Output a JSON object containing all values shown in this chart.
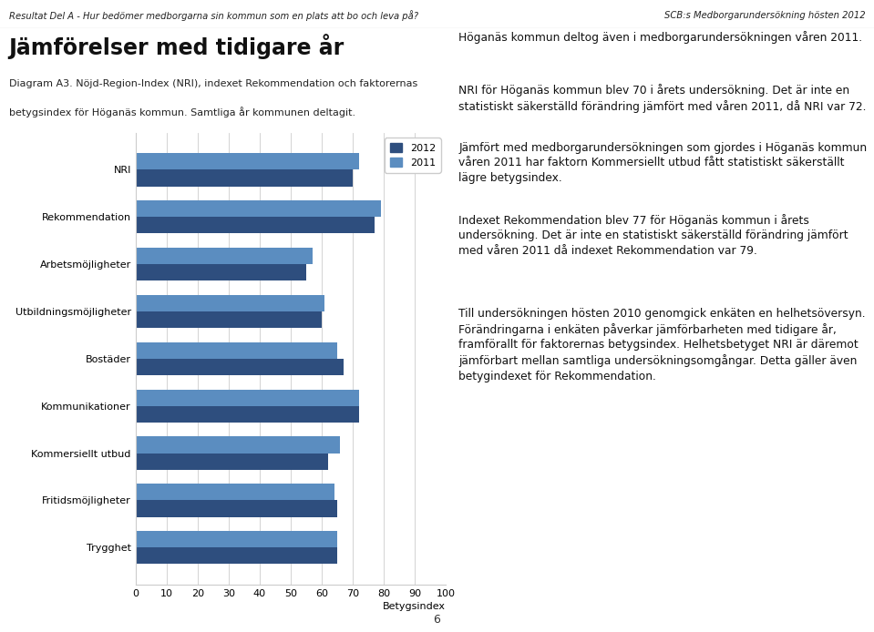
{
  "categories": [
    "NRI",
    "Rekommendation",
    "Arbetsmöjligheter",
    "Utbildningsmöjligheter",
    "Bostäder",
    "Kommunikationer",
    "Kommersiellt utbud",
    "Fritidsmöjligheter",
    "Trygghet"
  ],
  "values_2012": [
    70,
    77,
    55,
    60,
    67,
    72,
    62,
    65,
    65
  ],
  "values_2011": [
    72,
    79,
    57,
    61,
    65,
    72,
    66,
    64,
    65
  ],
  "color_2012": "#2E4E7E",
  "color_2011": "#5B8DC0",
  "legend_2012": "2012",
  "legend_2011": "2011",
  "xlabel": "Betygsindex",
  "xlim": [
    0,
    100
  ],
  "xticks": [
    0,
    10,
    20,
    30,
    40,
    50,
    60,
    70,
    80,
    90,
    100
  ],
  "bar_height": 0.35,
  "background_color": "#FFFFFF",
  "grid_color": "#CCCCCC",
  "header_left": "Resultat Del A - Hur bedömer medborgarna sin kommun som en plats att bo och leva på?",
  "header_right": "SCB:s Medborgarundersökning hösten 2012",
  "page_title": "Jämförelser med tidigare år",
  "page_subtitle_line1": "Diagram A3. Nöjd-Region-Index (NRI), indexet Rekommendation och faktorernas",
  "page_subtitle_line2": "betygsindex för Höganäs kommun. Samtliga år kommunen deltagit.",
  "right_para1": "Höganäs kommun deltog även i medborgarundersökningen våren 2011.",
  "right_para2": "NRI för Höganäs kommun blev 70 i årets undersökning. Det är inte en statistiskt säkerställd förändring jämfört med våren 2011, då NRI var 72.",
  "right_para3_pre": "Jämfört med medborgarundersökningen som gjordes i Höganäs kommun våren 2011 har faktorn ",
  "right_para3_italic": "Kommersiellt utbud",
  "right_para3_post": " fått statistiskt säkerställt lägre betygsindex.",
  "right_para4_pre": "Indexet ",
  "right_para4_italic": "Rekommendation",
  "right_para4_post": " blev 77 för Höganäs kommun i årets undersökning. Det är inte en statistiskt säkerställd förändring jämfört med våren 2011 då indexet ",
  "right_para4_italic2": "Rekommendation",
  "right_para4_post2": " var 79.",
  "right_para5_pre": "Till undersökningen hösten 2010 genomgick enkäten en helhetsöversyn. Förändringarna i enkäten påverkar jämförbarheten med tidigare år, framförallt för faktorernas betygsindex. Helhetsbetyget NRI är däremot jämförbart mellan samtliga undersökningsomgångar. Detta gäller även betygindexet för ",
  "right_para5_italic": "Rekommendation",
  "right_para5_post": ".",
  "footer": "6"
}
